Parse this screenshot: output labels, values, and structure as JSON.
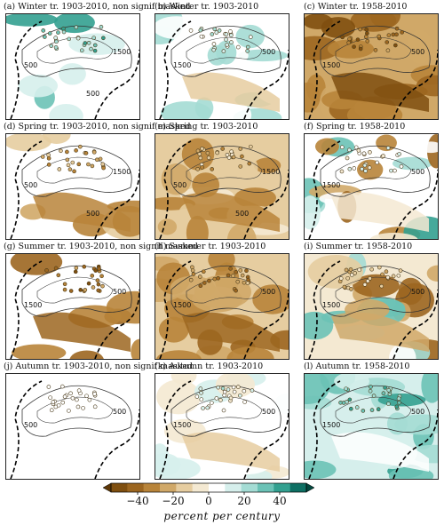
{
  "panels": [
    {
      "label": "(a) Winter tr. 1903-2010, non signif masked",
      "season": "Winter",
      "period": "1903-2010",
      "masked": true,
      "contours": [
        "500",
        "1500",
        "500"
      ],
      "tone": 0.55,
      "shade": "teal"
    },
    {
      "label": "(b) Winter tr. 1903-2010",
      "season": "Winter",
      "period": "1903-2010",
      "masked": false,
      "contours": [
        "1500",
        "500"
      ],
      "tone": 0.25,
      "shade": "teal"
    },
    {
      "label": "(c) Winter tr. 1958-2010",
      "season": "Winter",
      "period": "1958-2010",
      "masked": false,
      "contours": [
        "1500",
        "500"
      ],
      "tone": -0.75,
      "shade": "brown"
    },
    {
      "label": "(d) Spring tr. 1903-2010, non signif masked",
      "season": "Spring",
      "period": "1903-2010",
      "masked": true,
      "contours": [
        "500",
        "1500",
        "500"
      ],
      "tone": -0.45,
      "shade": "brown"
    },
    {
      "label": "(e) Spring tr. 1903-2010",
      "season": "Spring",
      "period": "1903-2010",
      "masked": false,
      "contours": [
        "500",
        "1500",
        "500"
      ],
      "tone": -0.35,
      "shade": "brown"
    },
    {
      "label": "(f) Spring tr. 1958-2010",
      "season": "Spring",
      "period": "1958-2010",
      "masked": false,
      "contours": [
        "1500",
        "500"
      ],
      "tone": 0.1,
      "shade": "mixed"
    },
    {
      "label": "(g) Summer tr. 1903-2010, non signif masked",
      "season": "Summer",
      "period": "1903-2010",
      "masked": true,
      "contours": [
        "1500",
        "500"
      ],
      "tone": -0.7,
      "shade": "brown"
    },
    {
      "label": "(h) Summer tr. 1903-2010",
      "season": "Summer",
      "period": "1903-2010",
      "masked": false,
      "contours": [
        "1500",
        "500"
      ],
      "tone": -0.6,
      "shade": "brown"
    },
    {
      "label": "(i) Summer tr. 1958-2010",
      "season": "Summer",
      "period": "1958-2010",
      "masked": false,
      "contours": [
        "1500",
        "500"
      ],
      "tone": -0.3,
      "shade": "mixed"
    },
    {
      "label": "(j) Autumn tr. 1903-2010, non signif masked",
      "season": "Autumn",
      "period": "1903-2010",
      "masked": true,
      "contours": [
        "500",
        "500"
      ],
      "tone": 0.0,
      "shade": "white"
    },
    {
      "label": "(k) Autumn tr. 1903-2010",
      "season": "Autumn",
      "period": "1903-2010",
      "masked": false,
      "contours": [
        "1500",
        "500"
      ],
      "tone": 0.15,
      "shade": "teal"
    },
    {
      "label": "(l) Autumn tr. 1958-2010",
      "season": "Autumn",
      "period": "1958-2010",
      "masked": false,
      "contours": [
        "1500",
        "500"
      ],
      "tone": 0.6,
      "shade": "teal"
    }
  ],
  "colorbar": {
    "ticks": [
      "−40",
      "−20",
      "0",
      "20",
      "40"
    ],
    "tick_values": [
      -40,
      -20,
      0,
      20,
      40
    ],
    "range": [
      -55,
      55
    ],
    "caption": "percent per century",
    "colors": [
      "#7f4f10",
      "#9c6620",
      "#b8843a",
      "#d0a868",
      "#e6cda0",
      "#f4e9d2",
      "#ffffff",
      "#d6efec",
      "#a4dcd4",
      "#6bc2b6",
      "#33a090",
      "#0e6f63"
    ]
  },
  "colors": {
    "border": "#222222",
    "contour": "#333333",
    "station_edge": "#4a3a1a"
  }
}
